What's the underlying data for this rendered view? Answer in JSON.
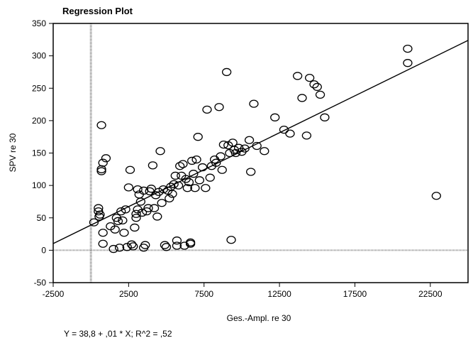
{
  "chart_data": {
    "type": "scatter",
    "title": "Regression Plot",
    "xlabel": "Ges.-Ampl. re 30",
    "ylabel": "SPV re 30",
    "xlim": [
      -2500,
      25000
    ],
    "ylim": [
      -50,
      350
    ],
    "xticks": [
      -2500,
      2500,
      7500,
      12500,
      17500,
      22500
    ],
    "yticks": [
      -50,
      0,
      50,
      100,
      150,
      200,
      250,
      300,
      350
    ],
    "grid": false,
    "reference_lines": {
      "x": 0,
      "y": 0
    },
    "regression": {
      "intercept": 38.8,
      "slope": 0.0114
    },
    "equation": "Y = 38,8 + ,01 * X; R^2 = ,52",
    "points": [
      [
        200,
        43
      ],
      [
        500,
        65
      ],
      [
        500,
        60
      ],
      [
        550,
        52
      ],
      [
        600,
        55
      ],
      [
        700,
        122
      ],
      [
        700,
        125
      ],
      [
        800,
        135
      ],
      [
        700,
        193
      ],
      [
        1000,
        142
      ],
      [
        800,
        27
      ],
      [
        800,
        10
      ],
      [
        1300,
        37
      ],
      [
        1500,
        2
      ],
      [
        1600,
        32
      ],
      [
        1700,
        50
      ],
      [
        1800,
        45
      ],
      [
        1900,
        4
      ],
      [
        2000,
        60
      ],
      [
        2100,
        46
      ],
      [
        2200,
        27
      ],
      [
        2300,
        63
      ],
      [
        2400,
        5
      ],
      [
        2500,
        97
      ],
      [
        2600,
        124
      ],
      [
        2700,
        9
      ],
      [
        2800,
        6
      ],
      [
        2900,
        35
      ],
      [
        3000,
        56
      ],
      [
        3000,
        50
      ],
      [
        3100,
        94
      ],
      [
        3100,
        63
      ],
      [
        3200,
        86
      ],
      [
        3300,
        75
      ],
      [
        3400,
        58
      ],
      [
        3500,
        92
      ],
      [
        3500,
        4
      ],
      [
        3600,
        8
      ],
      [
        3700,
        60
      ],
      [
        3800,
        65
      ],
      [
        3900,
        91
      ],
      [
        4000,
        95
      ],
      [
        4100,
        131
      ],
      [
        4200,
        65
      ],
      [
        4300,
        85
      ],
      [
        4400,
        52
      ],
      [
        4500,
        90
      ],
      [
        4600,
        153
      ],
      [
        4700,
        73
      ],
      [
        4800,
        94
      ],
      [
        4900,
        8
      ],
      [
        5000,
        5
      ],
      [
        5100,
        92
      ],
      [
        5200,
        80
      ],
      [
        5300,
        98
      ],
      [
        5400,
        87
      ],
      [
        5500,
        102
      ],
      [
        5600,
        115
      ],
      [
        5700,
        15
      ],
      [
        5700,
        7
      ],
      [
        5800,
        100
      ],
      [
        5900,
        130
      ],
      [
        6000,
        115
      ],
      [
        6100,
        133
      ],
      [
        6200,
        7
      ],
      [
        6300,
        110
      ],
      [
        6400,
        96
      ],
      [
        6500,
        105
      ],
      [
        6600,
        10
      ],
      [
        6600,
        12
      ],
      [
        6700,
        138
      ],
      [
        6800,
        118
      ],
      [
        6900,
        96
      ],
      [
        7000,
        140
      ],
      [
        7100,
        175
      ],
      [
        7200,
        108
      ],
      [
        7400,
        128
      ],
      [
        7600,
        96
      ],
      [
        7700,
        217
      ],
      [
        7900,
        112
      ],
      [
        8000,
        130
      ],
      [
        8200,
        140
      ],
      [
        8300,
        135
      ],
      [
        8500,
        221
      ],
      [
        8600,
        145
      ],
      [
        8700,
        124
      ],
      [
        8800,
        163
      ],
      [
        9000,
        275
      ],
      [
        9100,
        162
      ],
      [
        9200,
        150
      ],
      [
        9300,
        16
      ],
      [
        9400,
        166
      ],
      [
        9500,
        155
      ],
      [
        9600,
        150
      ],
      [
        9800,
        158
      ],
      [
        10000,
        152
      ],
      [
        10200,
        157
      ],
      [
        10500,
        170
      ],
      [
        10600,
        121
      ],
      [
        10800,
        226
      ],
      [
        11000,
        161
      ],
      [
        11500,
        153
      ],
      [
        12200,
        205
      ],
      [
        12800,
        186
      ],
      [
        13200,
        180
      ],
      [
        13700,
        269
      ],
      [
        14000,
        235
      ],
      [
        14300,
        177
      ],
      [
        14500,
        266
      ],
      [
        14800,
        256
      ],
      [
        15000,
        252
      ],
      [
        15200,
        240
      ],
      [
        15500,
        205
      ],
      [
        21000,
        311
      ],
      [
        21000,
        289
      ],
      [
        22900,
        84
      ]
    ]
  }
}
